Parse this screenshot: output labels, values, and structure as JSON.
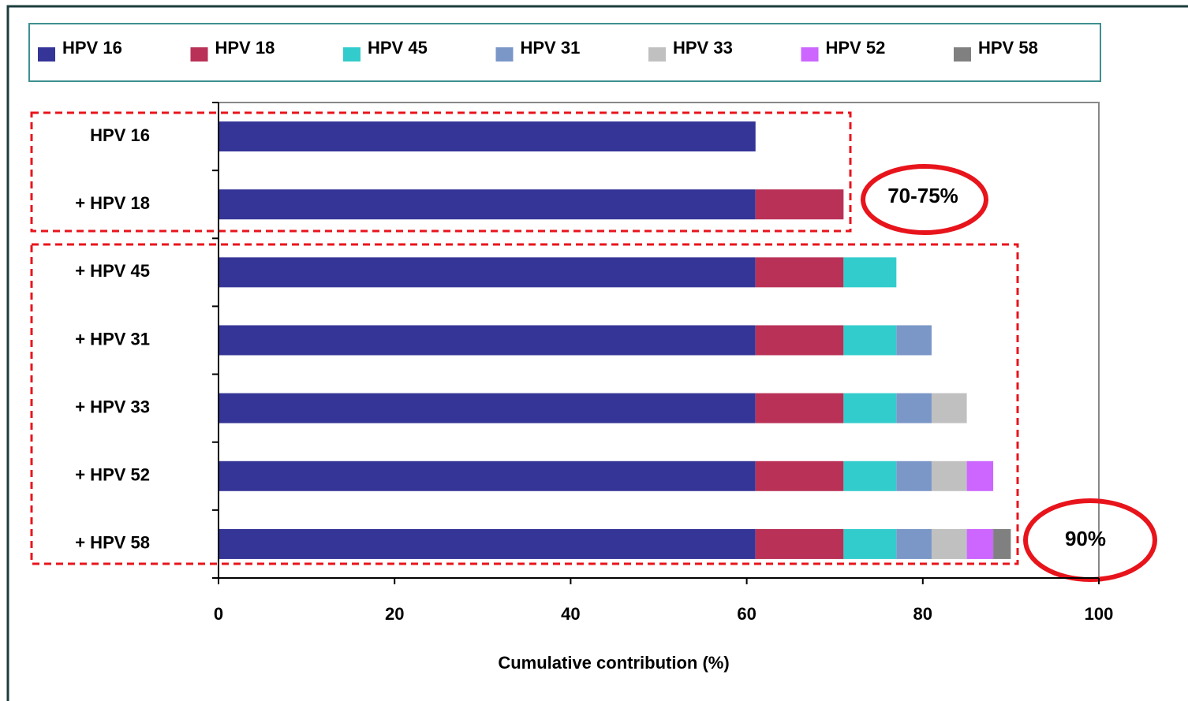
{
  "chart_data": {
    "type": "bar",
    "orientation": "horizontal",
    "stacked": true,
    "categories": [
      "HPV 16",
      "+ HPV 18",
      "+ HPV 45",
      "+ HPV 31",
      "+ HPV 33",
      "+ HPV 52",
      "+ HPV 58"
    ],
    "series": [
      {
        "name": "HPV 16",
        "color": "#353597",
        "values": [
          61,
          61,
          61,
          61,
          61,
          61,
          61
        ]
      },
      {
        "name": "HPV 18",
        "color": "#b93157",
        "values": [
          null,
          10,
          10,
          10,
          10,
          10,
          10
        ]
      },
      {
        "name": "HPV 45",
        "color": "#33cccc",
        "values": [
          null,
          null,
          6,
          6,
          6,
          6,
          6
        ]
      },
      {
        "name": "HPV 31",
        "color": "#7b97c8",
        "values": [
          null,
          null,
          null,
          4,
          4,
          4,
          4
        ]
      },
      {
        "name": "HPV 33",
        "color": "#c0c0c0",
        "values": [
          null,
          null,
          null,
          null,
          4,
          4,
          4
        ]
      },
      {
        "name": "HPV 52",
        "color": "#cc66ff",
        "values": [
          null,
          null,
          null,
          null,
          null,
          3,
          3
        ]
      },
      {
        "name": "HPV 58",
        "color": "#808080",
        "values": [
          null,
          null,
          null,
          null,
          null,
          null,
          2
        ]
      }
    ],
    "xlim": [
      0,
      100
    ],
    "xticks": [
      0,
      20,
      40,
      60,
      80,
      100
    ],
    "xlabel": "Cumulative contribution (%)",
    "annotations": [
      "70-75%",
      "90%"
    ],
    "legend": "top"
  }
}
